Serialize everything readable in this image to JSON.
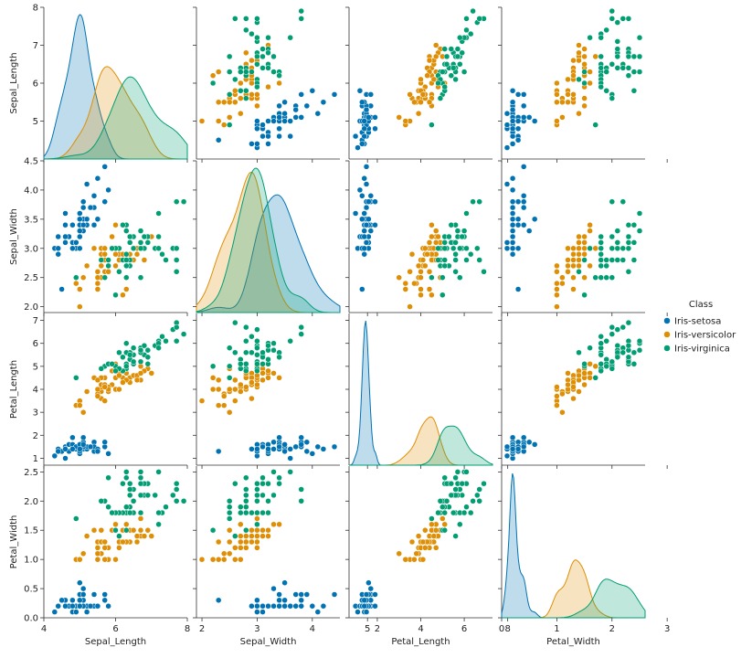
{
  "chart_data": {
    "type": "scatter",
    "variables": [
      "Sepal_Length",
      "Sepal_Width",
      "Petal_Length",
      "Petal_Width"
    ],
    "axis_ranges": {
      "Sepal_Length": [
        4.0,
        8.0
      ],
      "Sepal_Width": [
        1.9,
        4.5
      ],
      "Petal_Length": [
        0.7,
        7.3
      ],
      "Petal_Width": [
        0.0,
        2.6
      ]
    },
    "y_ticks": {
      "Sepal_Length": [
        "5",
        "6",
        "7",
        "8"
      ],
      "Sepal_Width": [
        "2.0",
        "2.5",
        "3.0",
        "3.5",
        "4.0",
        "4.5"
      ],
      "Petal_Length": [
        "1",
        "2",
        "3",
        "4",
        "5",
        "6",
        "7"
      ],
      "Petal_Width": [
        "0.0",
        "0.5",
        "1.0",
        "1.5",
        "2.0",
        "2.5"
      ]
    },
    "x_ticks": {
      "Sepal_Length": [
        "4",
        "6",
        "8"
      ],
      "Sepal_Width": [
        "2",
        "3",
        "4",
        "5"
      ],
      "Petal_Length": [
        "2",
        "4",
        "6",
        "8"
      ],
      "Petal_Width": [
        "0",
        "1",
        "2",
        "3"
      ]
    },
    "diagonal": "kde",
    "legend": {
      "title": "Class",
      "placement": "center-right",
      "entries": [
        {
          "name": "Iris-setosa",
          "color": "#0173b2"
        },
        {
          "name": "Iris-versicolor",
          "color": "#de8f05"
        },
        {
          "name": "Iris-virginica",
          "color": "#029e73"
        }
      ]
    },
    "series": [
      {
        "name": "Iris-setosa",
        "color": "#0173b2",
        "values": [
          [
            5.1,
            3.5,
            1.4,
            0.2
          ],
          [
            4.9,
            3.0,
            1.4,
            0.2
          ],
          [
            4.7,
            3.2,
            1.3,
            0.2
          ],
          [
            4.6,
            3.1,
            1.5,
            0.2
          ],
          [
            5.0,
            3.6,
            1.4,
            0.2
          ],
          [
            5.4,
            3.9,
            1.7,
            0.4
          ],
          [
            4.6,
            3.4,
            1.4,
            0.3
          ],
          [
            5.0,
            3.4,
            1.5,
            0.2
          ],
          [
            4.4,
            2.9,
            1.4,
            0.2
          ],
          [
            4.9,
            3.1,
            1.5,
            0.1
          ],
          [
            5.4,
            3.7,
            1.5,
            0.2
          ],
          [
            4.8,
            3.4,
            1.6,
            0.2
          ],
          [
            4.8,
            3.0,
            1.4,
            0.1
          ],
          [
            4.3,
            3.0,
            1.1,
            0.1
          ],
          [
            5.8,
            4.0,
            1.2,
            0.2
          ],
          [
            5.7,
            4.4,
            1.5,
            0.4
          ],
          [
            5.4,
            3.9,
            1.3,
            0.4
          ],
          [
            5.1,
            3.5,
            1.4,
            0.3
          ],
          [
            5.7,
            3.8,
            1.7,
            0.3
          ],
          [
            5.1,
            3.8,
            1.5,
            0.3
          ],
          [
            5.4,
            3.4,
            1.7,
            0.2
          ],
          [
            5.1,
            3.7,
            1.5,
            0.4
          ],
          [
            4.6,
            3.6,
            1.0,
            0.2
          ],
          [
            5.1,
            3.3,
            1.7,
            0.5
          ],
          [
            4.8,
            3.4,
            1.9,
            0.2
          ],
          [
            5.0,
            3.0,
            1.6,
            0.2
          ],
          [
            5.0,
            3.4,
            1.6,
            0.4
          ],
          [
            5.2,
            3.5,
            1.5,
            0.2
          ],
          [
            5.2,
            3.4,
            1.4,
            0.2
          ],
          [
            4.7,
            3.2,
            1.6,
            0.2
          ],
          [
            4.8,
            3.1,
            1.6,
            0.2
          ],
          [
            5.4,
            3.4,
            1.5,
            0.4
          ],
          [
            5.2,
            4.1,
            1.5,
            0.1
          ],
          [
            5.5,
            4.2,
            1.4,
            0.2
          ],
          [
            4.9,
            3.1,
            1.5,
            0.1
          ],
          [
            5.0,
            3.2,
            1.2,
            0.2
          ],
          [
            5.5,
            3.5,
            1.3,
            0.2
          ],
          [
            4.9,
            3.1,
            1.5,
            0.1
          ],
          [
            4.4,
            3.0,
            1.3,
            0.2
          ],
          [
            5.1,
            3.4,
            1.5,
            0.2
          ],
          [
            5.0,
            3.5,
            1.3,
            0.3
          ],
          [
            4.5,
            2.3,
            1.3,
            0.3
          ],
          [
            4.4,
            3.2,
            1.3,
            0.2
          ],
          [
            5.0,
            3.5,
            1.6,
            0.6
          ],
          [
            5.1,
            3.8,
            1.9,
            0.4
          ],
          [
            4.8,
            3.0,
            1.4,
            0.3
          ],
          [
            5.1,
            3.8,
            1.6,
            0.2
          ],
          [
            4.6,
            3.2,
            1.4,
            0.2
          ],
          [
            5.3,
            3.7,
            1.5,
            0.2
          ],
          [
            5.0,
            3.3,
            1.4,
            0.2
          ]
        ]
      },
      {
        "name": "Iris-versicolor",
        "color": "#de8f05",
        "values": [
          [
            7.0,
            3.2,
            4.7,
            1.4
          ],
          [
            6.4,
            3.2,
            4.5,
            1.5
          ],
          [
            6.9,
            3.1,
            4.9,
            1.5
          ],
          [
            5.5,
            2.3,
            4.0,
            1.3
          ],
          [
            6.5,
            2.8,
            4.6,
            1.5
          ],
          [
            5.7,
            2.8,
            4.5,
            1.3
          ],
          [
            6.3,
            3.3,
            4.7,
            1.6
          ],
          [
            4.9,
            2.4,
            3.3,
            1.0
          ],
          [
            6.6,
            2.9,
            4.6,
            1.3
          ],
          [
            5.2,
            2.7,
            3.9,
            1.4
          ],
          [
            5.0,
            2.0,
            3.5,
            1.0
          ],
          [
            5.9,
            3.0,
            4.2,
            1.5
          ],
          [
            6.0,
            2.2,
            4.0,
            1.0
          ],
          [
            6.1,
            2.9,
            4.7,
            1.4
          ],
          [
            5.6,
            2.9,
            3.6,
            1.3
          ],
          [
            6.7,
            3.1,
            4.4,
            1.4
          ],
          [
            5.6,
            3.0,
            4.5,
            1.5
          ],
          [
            5.8,
            2.7,
            4.1,
            1.0
          ],
          [
            6.2,
            2.2,
            4.5,
            1.5
          ],
          [
            5.6,
            2.5,
            3.9,
            1.1
          ],
          [
            5.9,
            3.2,
            4.8,
            1.8
          ],
          [
            6.1,
            2.8,
            4.0,
            1.3
          ],
          [
            6.3,
            2.5,
            4.9,
            1.5
          ],
          [
            6.1,
            2.8,
            4.7,
            1.2
          ],
          [
            6.4,
            2.9,
            4.3,
            1.3
          ],
          [
            6.6,
            3.0,
            4.4,
            1.4
          ],
          [
            6.8,
            2.8,
            4.8,
            1.4
          ],
          [
            6.7,
            3.0,
            5.0,
            1.7
          ],
          [
            6.0,
            2.9,
            4.5,
            1.5
          ],
          [
            5.7,
            2.6,
            3.5,
            1.0
          ],
          [
            5.5,
            2.4,
            3.8,
            1.1
          ],
          [
            5.5,
            2.4,
            3.7,
            1.0
          ],
          [
            5.8,
            2.7,
            3.9,
            1.2
          ],
          [
            6.0,
            2.7,
            5.1,
            1.6
          ],
          [
            5.4,
            3.0,
            4.5,
            1.5
          ],
          [
            6.0,
            3.4,
            4.5,
            1.6
          ],
          [
            6.7,
            3.1,
            4.7,
            1.5
          ],
          [
            6.3,
            2.3,
            4.4,
            1.3
          ],
          [
            5.6,
            3.0,
            4.1,
            1.3
          ],
          [
            5.5,
            2.5,
            4.0,
            1.3
          ],
          [
            5.5,
            2.6,
            4.4,
            1.2
          ],
          [
            6.1,
            3.0,
            4.6,
            1.4
          ],
          [
            5.8,
            2.6,
            4.0,
            1.2
          ],
          [
            5.0,
            2.3,
            3.3,
            1.0
          ],
          [
            5.6,
            2.7,
            4.2,
            1.3
          ],
          [
            5.7,
            3.0,
            4.2,
            1.2
          ],
          [
            5.7,
            2.9,
            4.2,
            1.3
          ],
          [
            6.2,
            2.9,
            4.3,
            1.3
          ],
          [
            5.1,
            2.5,
            3.0,
            1.1
          ],
          [
            5.7,
            2.8,
            4.1,
            1.3
          ]
        ]
      },
      {
        "name": "Iris-virginica",
        "color": "#029e73",
        "values": [
          [
            6.3,
            3.3,
            6.0,
            2.5
          ],
          [
            5.8,
            2.7,
            5.1,
            1.9
          ],
          [
            7.1,
            3.0,
            5.9,
            2.1
          ],
          [
            6.3,
            2.9,
            5.6,
            1.8
          ],
          [
            6.5,
            3.0,
            5.8,
            2.2
          ],
          [
            7.6,
            3.0,
            6.6,
            2.1
          ],
          [
            4.9,
            2.5,
            4.5,
            1.7
          ],
          [
            7.3,
            2.9,
            6.3,
            1.8
          ],
          [
            6.7,
            2.5,
            5.8,
            1.8
          ],
          [
            7.2,
            3.6,
            6.1,
            2.5
          ],
          [
            6.5,
            3.2,
            5.1,
            2.0
          ],
          [
            6.4,
            2.7,
            5.3,
            1.9
          ],
          [
            6.8,
            3.0,
            5.5,
            2.1
          ],
          [
            5.7,
            2.5,
            5.0,
            2.0
          ],
          [
            5.8,
            2.8,
            5.1,
            2.4
          ],
          [
            6.4,
            3.2,
            5.3,
            2.3
          ],
          [
            6.5,
            3.0,
            5.5,
            1.8
          ],
          [
            7.7,
            3.8,
            6.7,
            2.2
          ],
          [
            7.7,
            2.6,
            6.9,
            2.3
          ],
          [
            6.0,
            2.2,
            5.0,
            1.5
          ],
          [
            6.9,
            3.2,
            5.7,
            2.3
          ],
          [
            5.6,
            2.8,
            4.9,
            2.0
          ],
          [
            7.7,
            2.8,
            6.7,
            2.0
          ],
          [
            6.3,
            2.7,
            4.9,
            1.8
          ],
          [
            6.7,
            3.3,
            5.7,
            2.1
          ],
          [
            7.2,
            3.2,
            6.0,
            1.8
          ],
          [
            6.2,
            2.8,
            4.8,
            1.8
          ],
          [
            6.1,
            3.0,
            4.9,
            1.8
          ],
          [
            6.4,
            2.8,
            5.6,
            2.1
          ],
          [
            7.2,
            3.0,
            5.8,
            1.6
          ],
          [
            7.4,
            2.8,
            6.1,
            1.9
          ],
          [
            7.9,
            3.8,
            6.4,
            2.0
          ],
          [
            6.4,
            2.8,
            5.6,
            2.2
          ],
          [
            6.3,
            2.8,
            5.1,
            1.5
          ],
          [
            6.1,
            2.6,
            5.6,
            1.4
          ],
          [
            7.7,
            3.0,
            6.1,
            2.3
          ],
          [
            6.3,
            3.4,
            5.6,
            2.4
          ],
          [
            6.4,
            3.1,
            5.5,
            1.8
          ],
          [
            6.0,
            3.0,
            4.8,
            1.8
          ],
          [
            6.9,
            3.1,
            5.4,
            2.1
          ],
          [
            6.7,
            3.1,
            5.6,
            2.4
          ],
          [
            6.9,
            3.1,
            5.1,
            2.3
          ],
          [
            5.8,
            2.7,
            5.1,
            1.9
          ],
          [
            6.8,
            3.2,
            5.9,
            2.3
          ],
          [
            6.7,
            3.3,
            5.7,
            2.5
          ],
          [
            6.7,
            3.0,
            5.2,
            2.3
          ],
          [
            6.3,
            2.5,
            5.0,
            1.9
          ],
          [
            6.5,
            3.0,
            5.2,
            2.0
          ],
          [
            6.2,
            3.4,
            5.4,
            2.3
          ],
          [
            5.9,
            3.0,
            5.1,
            1.8
          ]
        ]
      }
    ]
  }
}
